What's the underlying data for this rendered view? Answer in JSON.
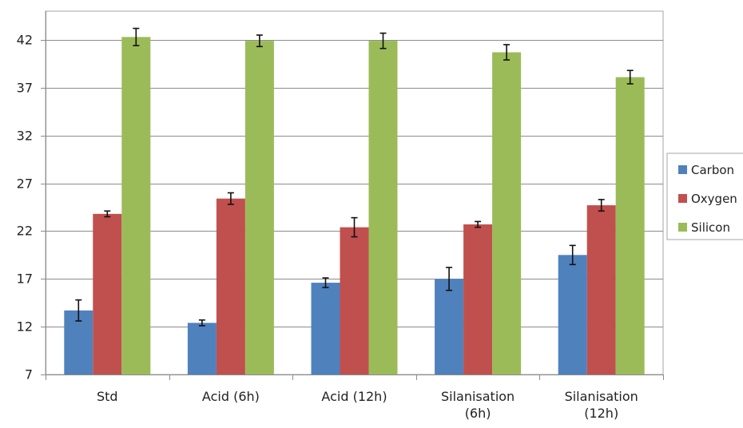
{
  "chart_data": {
    "type": "bar",
    "title": "",
    "xlabel": "",
    "ylabel": "",
    "categories": [
      [
        "Std"
      ],
      [
        "Acid (6h)"
      ],
      [
        "Acid (12h)"
      ],
      [
        "Silanisation",
        "(6h)"
      ],
      [
        "Silanisation",
        "(12h)"
      ]
    ],
    "series": [
      {
        "name": "Carbon",
        "color": "#4f81bd",
        "values": [
          13.7,
          12.4,
          16.6,
          17.0,
          19.5
        ],
        "errors": [
          1.1,
          0.3,
          0.5,
          1.2,
          1.0
        ]
      },
      {
        "name": "Oxygen",
        "color": "#c0504d",
        "values": [
          23.8,
          25.4,
          22.4,
          22.7,
          24.7
        ],
        "errors": [
          0.3,
          0.6,
          1.0,
          0.3,
          0.6
        ]
      },
      {
        "name": "Silicon",
        "color": "#9bbb59",
        "values": [
          42.3,
          41.9,
          41.9,
          40.7,
          38.1
        ],
        "errors": [
          0.9,
          0.6,
          0.8,
          0.8,
          0.7
        ]
      }
    ],
    "ylim": [
      7,
      45
    ],
    "yticks": [
      7,
      12,
      17,
      22,
      27,
      32,
      37,
      42
    ],
    "grid": true,
    "legend": "right"
  }
}
